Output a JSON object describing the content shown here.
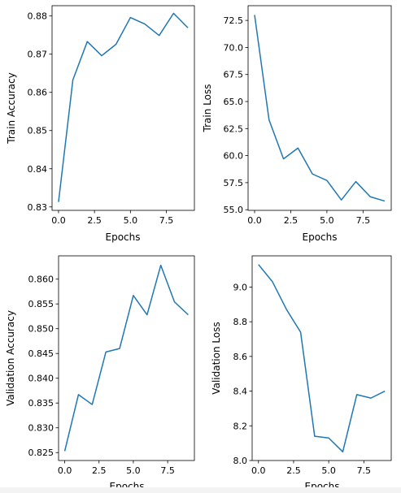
{
  "chart_data": [
    {
      "type": "line",
      "xlabel": "Epochs",
      "ylabel": "Train Accuracy",
      "x": [
        0,
        1,
        2,
        3,
        4,
        5,
        6,
        7,
        8,
        9
      ],
      "values": [
        0.8313,
        0.8633,
        0.8733,
        0.8696,
        0.8726,
        0.8796,
        0.8779,
        0.8749,
        0.8807,
        0.8769
      ],
      "xlim": [
        -0.45,
        9.45
      ],
      "ylim": [
        0.8291,
        0.8827
      ],
      "xticks": [
        0,
        2.5,
        5,
        7.5
      ],
      "xtick_labels": [
        "0.0",
        "2.5",
        "5.0",
        "7.5"
      ],
      "yticks": [
        0.83,
        0.84,
        0.85,
        0.86,
        0.87,
        0.88
      ],
      "ytick_labels": [
        "0.83",
        "0.84",
        "0.85",
        "0.86",
        "0.87",
        "0.88"
      ],
      "color": "#1f77b4",
      "grid": false
    },
    {
      "type": "line",
      "xlabel": "Epochs",
      "ylabel": "Train Loss",
      "x": [
        0,
        1,
        2,
        3,
        4,
        5,
        6,
        7,
        8,
        9
      ],
      "values": [
        73.0,
        63.3,
        59.7,
        60.7,
        58.3,
        57.7,
        55.9,
        57.6,
        56.2,
        55.8
      ],
      "xlim": [
        -0.45,
        9.45
      ],
      "ylim": [
        54.94,
        73.86
      ],
      "xticks": [
        0,
        2.5,
        5,
        7.5
      ],
      "xtick_labels": [
        "0.0",
        "2.5",
        "5.0",
        "7.5"
      ],
      "yticks": [
        55.0,
        57.5,
        60.0,
        62.5,
        65.0,
        67.5,
        70.0,
        72.5
      ],
      "ytick_labels": [
        "55.0",
        "57.5",
        "60.0",
        "62.5",
        "65.0",
        "67.5",
        "70.0",
        "72.5"
      ],
      "color": "#1f77b4",
      "grid": false
    },
    {
      "type": "line",
      "xlabel": "Epochs",
      "ylabel": "Validation Accuracy",
      "x": [
        0,
        1,
        2,
        3,
        4,
        5,
        6,
        7,
        8,
        9
      ],
      "values": [
        0.8253,
        0.8367,
        0.8347,
        0.8453,
        0.846,
        0.8567,
        0.8528,
        0.8628,
        0.8554,
        0.8528
      ],
      "xlim": [
        -0.45,
        9.45
      ],
      "ylim": [
        0.8234,
        0.8647
      ],
      "xticks": [
        0,
        2.5,
        5,
        7.5
      ],
      "xtick_labels": [
        "0.0",
        "2.5",
        "5.0",
        "7.5"
      ],
      "yticks": [
        0.825,
        0.83,
        0.835,
        0.84,
        0.845,
        0.85,
        0.855,
        0.86
      ],
      "ytick_labels": [
        "0.825",
        "0.830",
        "0.835",
        "0.840",
        "0.845",
        "0.850",
        "0.855",
        "0.860"
      ],
      "color": "#1f77b4",
      "grid": false
    },
    {
      "type": "line",
      "xlabel": "Epochs",
      "ylabel": "Validation Loss",
      "x": [
        0,
        1,
        2,
        3,
        4,
        5,
        6,
        7,
        8,
        9
      ],
      "values": [
        9.13,
        9.03,
        8.87,
        8.74,
        8.14,
        8.13,
        8.05,
        8.38,
        8.36,
        8.4
      ],
      "xlim": [
        -0.45,
        9.45
      ],
      "ylim": [
        8.0,
        9.18
      ],
      "xticks": [
        0,
        2.5,
        5,
        7.5
      ],
      "xtick_labels": [
        "0.0",
        "2.5",
        "5.0",
        "7.5"
      ],
      "yticks": [
        8.0,
        8.2,
        8.4,
        8.6,
        8.8,
        9.0
      ],
      "ytick_labels": [
        "8.0",
        "8.2",
        "8.4",
        "8.6",
        "8.8",
        "9.0"
      ],
      "color": "#1f77b4",
      "grid": false
    }
  ]
}
